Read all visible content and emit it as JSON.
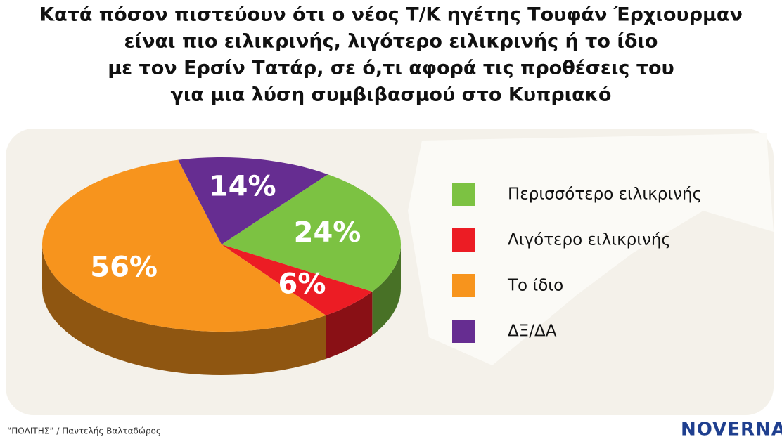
{
  "chart_data": {
    "type": "pie3d",
    "title": [
      "Κατά πόσον πιστεύουν ότι ο νέος Τ/Κ ηγέτης Τουφάν Έρχιουρμαν",
      "είναι πιο ειλικρινής, λιγότερο ειλικρινής ή το ίδιο",
      "με τον Ερσίν Τατάρ, σε ό,τι αφορά τις προθέσεις του",
      "για μια λύση συμβιβασμού στο Κυπριακό"
    ],
    "categories": [
      "Περισσότερο ειλικρινής",
      "Λιγότερο ειλικρινής",
      "Το ίδιο",
      "ΔΞ/ΔΑ"
    ],
    "values": [
      24,
      6,
      56,
      14
    ],
    "value_labels": [
      "24%",
      "6%",
      "56%",
      "14%"
    ],
    "colors": [
      "#7cc242",
      "#ec1c24",
      "#f7941d",
      "#662d91"
    ],
    "legend": "right",
    "source": "“ΠΟΛΙΤΗΣ” / Παντελής Βαλταδώρος",
    "logo": "NOVERNA"
  }
}
